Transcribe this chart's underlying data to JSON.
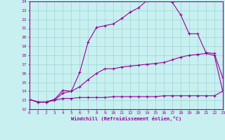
{
  "xlabel": "Windchill (Refroidissement éolien,°C)",
  "bg_color": "#c8f0f0",
  "grid_color": "#9ed4d4",
  "line_color": "#990099",
  "xlim": [
    0,
    23
  ],
  "ylim": [
    12,
    24
  ],
  "xticks": [
    0,
    1,
    2,
    3,
    4,
    5,
    6,
    7,
    8,
    9,
    10,
    11,
    12,
    13,
    14,
    15,
    16,
    17,
    18,
    19,
    20,
    21,
    22,
    23
  ],
  "yticks": [
    12,
    13,
    14,
    15,
    16,
    17,
    18,
    19,
    20,
    21,
    22,
    23,
    24
  ],
  "line1_x": [
    0,
    1,
    2,
    3,
    4,
    5,
    6,
    7,
    8,
    9,
    10,
    11,
    12,
    13,
    14,
    15,
    16,
    17,
    18,
    19,
    20,
    21,
    22,
    23
  ],
  "line1_y": [
    13.1,
    12.8,
    12.8,
    13.0,
    13.2,
    13.2,
    13.3,
    13.3,
    13.3,
    13.3,
    13.4,
    13.4,
    13.4,
    13.4,
    13.4,
    13.4,
    13.5,
    13.5,
    13.5,
    13.5,
    13.5,
    13.5,
    13.5,
    14.0
  ],
  "line2_x": [
    0,
    1,
    2,
    3,
    4,
    5,
    6,
    7,
    8,
    9,
    10,
    11,
    12,
    13,
    14,
    15,
    16,
    17,
    18,
    19,
    20,
    21,
    22,
    23
  ],
  "line2_y": [
    13.1,
    12.8,
    12.8,
    13.0,
    13.8,
    14.0,
    14.5,
    15.3,
    16.0,
    16.5,
    16.5,
    16.7,
    16.8,
    16.9,
    17.0,
    17.1,
    17.2,
    17.5,
    17.8,
    18.0,
    18.1,
    18.2,
    18.0,
    14.0
  ],
  "line3_x": [
    0,
    1,
    2,
    3,
    4,
    5,
    6,
    7,
    8,
    9,
    10,
    11,
    12,
    13,
    14,
    15,
    16,
    17,
    18,
    19,
    20,
    21,
    22,
    23
  ],
  "line3_y": [
    13.1,
    12.8,
    12.8,
    13.1,
    14.1,
    14.0,
    16.1,
    19.5,
    21.1,
    21.3,
    21.5,
    22.1,
    22.8,
    23.3,
    24.1,
    24.2,
    24.2,
    23.9,
    22.5,
    20.4,
    20.4,
    18.3,
    18.2,
    15.5
  ],
  "figsize": [
    3.2,
    2.0
  ],
  "dpi": 100
}
